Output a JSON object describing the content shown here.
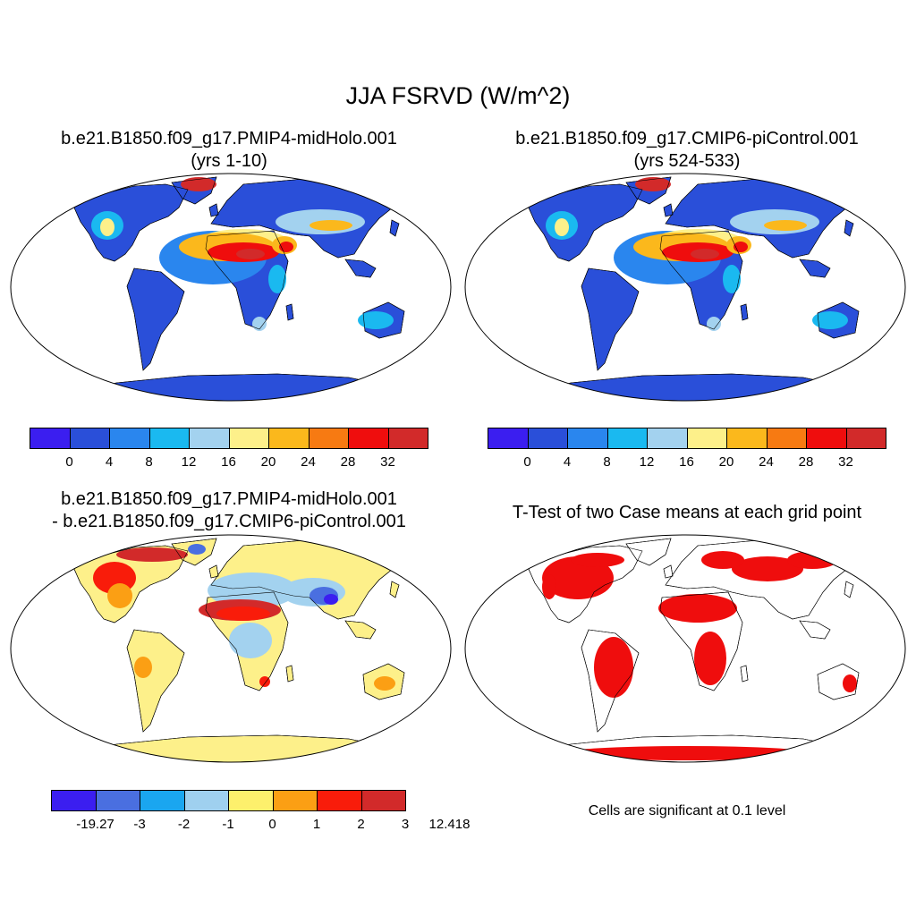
{
  "title": "JJA FSRVD (W/m^2)",
  "panels": [
    {
      "title_line1": "b.e21.B1850.f09_g17.PMIP4-midHolo.001",
      "title_line2": "(yrs 1-10)"
    },
    {
      "title_line1": "b.e21.B1850.f09_g17.CMIP6-piControl.001",
      "title_line2": "(yrs 524-533)"
    },
    {
      "title_line1": "b.e21.B1850.f09_g17.PMIP4-midHolo.001",
      "title_line2": "- b.e21.B1850.f09_g17.CMIP6-piControl.001"
    },
    {
      "title_line1": "T-Test of two Case means at each grid point",
      "note": "Cells are significant at 0.1 level"
    }
  ],
  "colorbar_abs": {
    "labels": [
      "0",
      "4",
      "8",
      "12",
      "16",
      "20",
      "24",
      "28",
      "32"
    ],
    "colors": [
      "#3b1ef0",
      "#2a4fd9",
      "#2a86ee",
      "#1ab9f0",
      "#a3d2ef",
      "#fdf08a",
      "#fbb81c",
      "#f77a12",
      "#ef0d0d",
      "#d22a2a"
    ]
  },
  "colorbar_diff": {
    "labels": [
      "-19.27",
      "-3",
      "-2",
      "-1",
      "0",
      "1",
      "2",
      "3",
      "12.418"
    ],
    "colors": [
      "#3b1ef0",
      "#4a6fe0",
      "#1aa6f0",
      "#9fd0ef",
      "#fdf06c",
      "#fb9f14",
      "#f91c0a",
      "#d22a2a"
    ]
  },
  "map_colors": {
    "ocean": "#ffffff",
    "significant": "#ef0d0d"
  }
}
